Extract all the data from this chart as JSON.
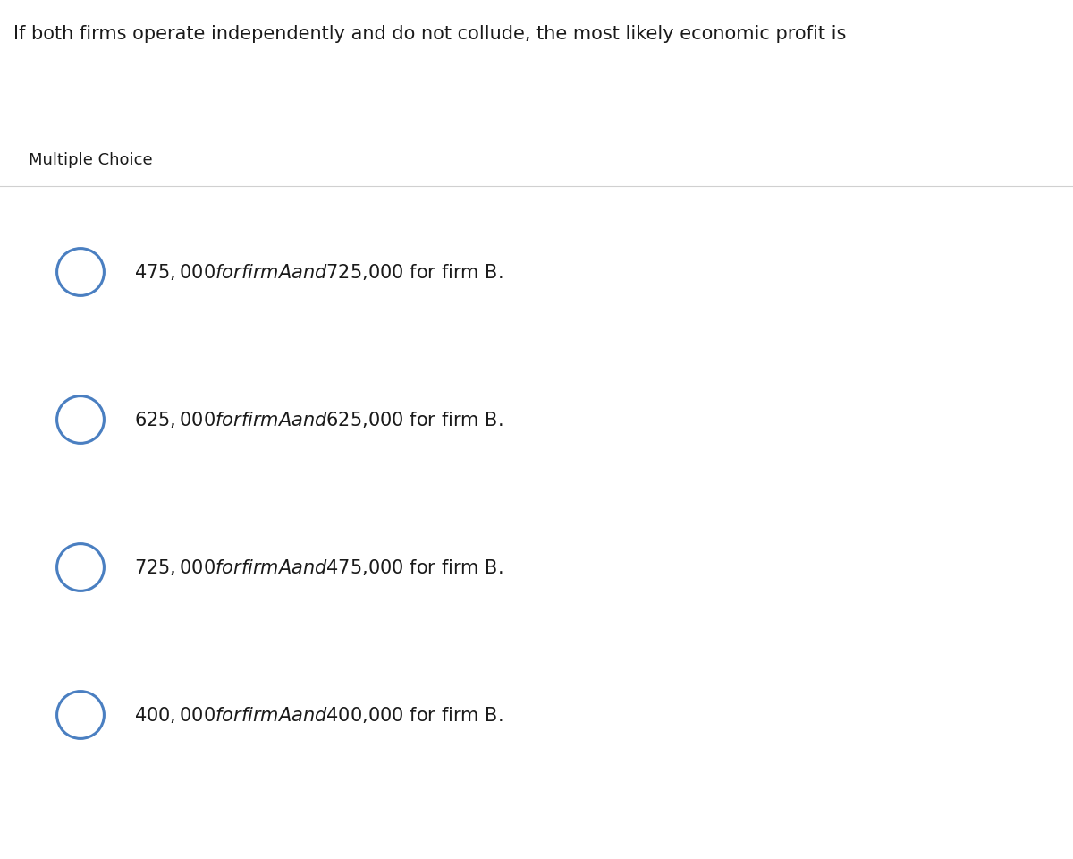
{
  "question": "If both firms operate independently and do not collude, the most likely economic profit is",
  "label": "Multiple Choice",
  "choices": [
    "$475,000 for firm A and $725,000 for firm B.",
    "$625,000 for firm A and $625,000 for firm B.",
    "$725,000 for firm A and $475,000 for firm B.",
    "$400,000 for firm A and $400,000 for firm B."
  ],
  "bg_color": "#ffffff",
  "outer_bg": "#f0f0f0",
  "choice_bg": "#f5f5f5",
  "white_card": "#ffffff",
  "question_fontsize": 15,
  "label_fontsize": 13,
  "choice_fontsize": 15,
  "circle_color": "#4a7fc1",
  "text_color": "#1a1a1a",
  "label_text_color": "#1a1a1a"
}
